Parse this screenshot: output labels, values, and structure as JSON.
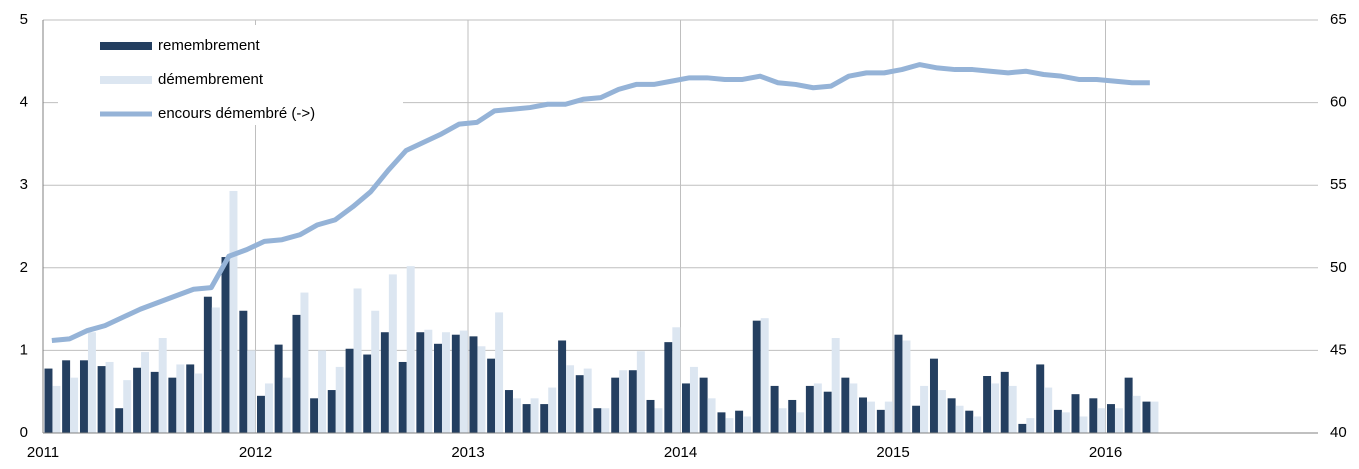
{
  "chart_data": {
    "type": "bar_line",
    "x": [
      2011,
      2011.083,
      2011.167,
      2011.25,
      2011.333,
      2011.417,
      2011.5,
      2011.583,
      2011.667,
      2011.75,
      2011.833,
      2011.917,
      2012,
      2012.083,
      2012.167,
      2012.25,
      2012.333,
      2012.417,
      2012.5,
      2012.583,
      2012.667,
      2012.75,
      2012.833,
      2012.917,
      2013,
      2013.083,
      2013.167,
      2013.25,
      2013.333,
      2013.417,
      2013.5,
      2013.583,
      2013.667,
      2013.75,
      2013.833,
      2013.917,
      2014,
      2014.083,
      2014.167,
      2014.25,
      2014.333,
      2014.417,
      2014.5,
      2014.583,
      2014.667,
      2014.75,
      2014.833,
      2014.917,
      2015,
      2015.083,
      2015.167,
      2015.25,
      2015.333,
      2015.417,
      2015.5,
      2015.583,
      2015.667,
      2015.75,
      2015.833,
      2015.917,
      2016,
      2016.083,
      2016.167
    ],
    "series": [
      {
        "name": "remembrement",
        "color": "#243f60",
        "kind": "bar",
        "values": [
          0.78,
          0.88,
          0.88,
          0.81,
          0.3,
          0.79,
          0.74,
          0.67,
          0.83,
          1.65,
          2.13,
          1.48,
          0.45,
          1.07,
          1.43,
          0.42,
          0.52,
          1.02,
          0.95,
          1.22,
          0.86,
          1.22,
          1.08,
          1.19,
          1.17,
          0.9,
          0.52,
          0.35,
          0.35,
          1.12,
          0.7,
          0.3,
          0.67,
          0.76,
          0.4,
          1.1,
          0.6,
          0.67,
          0.25,
          0.27,
          1.36,
          0.57,
          0.4,
          0.57,
          0.5,
          0.67,
          0.43,
          0.28,
          1.19,
          0.33,
          0.9,
          0.42,
          0.27,
          0.69,
          0.74,
          0.11,
          0.83,
          0.28,
          0.47,
          0.42,
          0.35,
          0.67,
          0.38
        ]
      },
      {
        "name": "démembrement",
        "color": "#dce6f1",
        "kind": "bar",
        "values": [
          0.57,
          0.67,
          1.22,
          0.86,
          0.64,
          0.98,
          1.15,
          0.83,
          0.72,
          1.52,
          2.93,
          1.0,
          0.6,
          0.67,
          1.7,
          1.0,
          0.8,
          1.75,
          1.48,
          1.92,
          2.02,
          1.25,
          1.22,
          1.24,
          1.05,
          1.46,
          0.42,
          0.42,
          0.55,
          0.82,
          0.78,
          0.3,
          0.76,
          0.99,
          0.3,
          1.28,
          0.8,
          0.42,
          0.18,
          0.2,
          1.39,
          0.3,
          0.25,
          0.6,
          1.15,
          0.6,
          0.38,
          0.38,
          1.12,
          0.57,
          0.52,
          0.33,
          0.2,
          0.6,
          0.57,
          0.18,
          0.55,
          0.25,
          0.2,
          0.3,
          0.3,
          0.45,
          0.38
        ]
      },
      {
        "name": "encours démembré (->)",
        "color": "#95b3d7",
        "kind": "line",
        "axis": "y2",
        "values": [
          45.6,
          45.7,
          46.2,
          46.5,
          47.0,
          47.5,
          47.9,
          48.3,
          48.7,
          48.8,
          50.7,
          51.1,
          51.6,
          51.7,
          52.0,
          52.6,
          52.9,
          53.7,
          54.6,
          55.9,
          57.1,
          57.6,
          58.1,
          58.7,
          58.8,
          59.5,
          59.6,
          59.7,
          59.9,
          59.9,
          60.2,
          60.3,
          60.8,
          61.1,
          61.1,
          61.3,
          61.5,
          61.5,
          61.4,
          61.4,
          61.6,
          61.2,
          61.1,
          60.9,
          61.0,
          61.6,
          61.8,
          61.8,
          62.0,
          62.3,
          62.1,
          62.0,
          62.0,
          61.9,
          61.8,
          61.9,
          61.7,
          61.6,
          61.4,
          61.4,
          61.3,
          61.2,
          61.2
        ]
      }
    ],
    "xlim": [
      2011,
      2017
    ],
    "xticks": [
      2011,
      2012,
      2013,
      2014,
      2015,
      2016
    ],
    "ylim": [
      0,
      5
    ],
    "yticks": [
      0,
      1,
      2,
      3,
      4,
      5
    ],
    "y2lim": [
      40,
      65
    ],
    "y2ticks": [
      40,
      45,
      50,
      55,
      60,
      65
    ],
    "grid": true,
    "legend": "top-left"
  }
}
